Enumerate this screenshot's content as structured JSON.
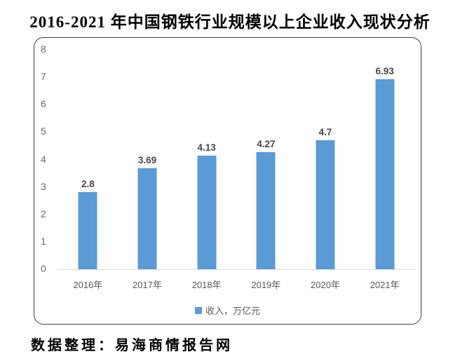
{
  "title": "2016-2021 年中国钢铁行业规模以上企业收入现状分析",
  "footer": "数据整理：易海商情报告网",
  "chart_data": {
    "type": "bar",
    "title": "2016-2021 年中国钢铁行业规模以上企业收入现状分析",
    "categories": [
      "2016年",
      "2017年",
      "2018年",
      "2019年",
      "2020年",
      "2021年"
    ],
    "values": [
      2.8,
      3.69,
      4.13,
      4.27,
      4.7,
      6.93
    ],
    "data_labels": [
      "2.8",
      "3.69",
      "4.13",
      "4.27",
      "4.7",
      "6.93"
    ],
    "legend": "收入，万亿元",
    "legend_position": "bottom",
    "xlabel": "",
    "ylabel": "",
    "ylim": [
      0,
      8
    ],
    "yticks": [
      0,
      1,
      2,
      3,
      4,
      5,
      6,
      7,
      8
    ],
    "grid": false,
    "bar_color": "#5B9BD5",
    "axis_line_color": "#d9d9d9",
    "tick_text_color": "#666a6e",
    "data_label_color": "#474747"
  }
}
